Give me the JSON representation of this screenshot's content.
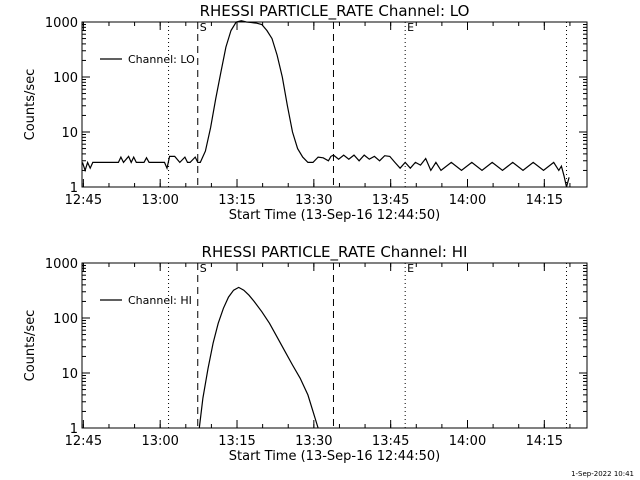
{
  "chart_data": [
    {
      "type": "line",
      "title": "RHESSI PARTICLE_RATE Channel: LO",
      "xlabel": "Start Time (13-Sep-16 12:44:50)",
      "ylabel": "Counts/sec",
      "yscale": "log",
      "ylim": [
        1,
        1000
      ],
      "y_tick_labels": [
        "1",
        "10",
        "100",
        "1000"
      ],
      "x_tick_labels": [
        "12:45",
        "13:00",
        "13:15",
        "13:30",
        "13:45",
        "14:00",
        "14:15"
      ],
      "xlim_min": [
        -0.1,
        98.5
      ],
      "legend": "Channel: LO",
      "legend_position": "top-left",
      "markers": [
        {
          "label": "S",
          "t_min": 22.5,
          "style": "dashed"
        },
        {
          "label": "",
          "t_min": 49.0,
          "style": "dashed"
        },
        {
          "label": "E",
          "t_min": 63.0,
          "style": "dotted"
        },
        {
          "label": "",
          "t_min": 16.8,
          "style": "dotted"
        },
        {
          "label": "",
          "t_min": 94.5,
          "style": "dotted"
        }
      ],
      "series": [
        {
          "name": "Channel: LO",
          "t_min": [
            0,
            0.5,
            1,
            1.5,
            2,
            3,
            5,
            7,
            7.5,
            8,
            9,
            9.5,
            10,
            10.5,
            11,
            12,
            12.5,
            13,
            14,
            15,
            16,
            16.5,
            17,
            18,
            19,
            20,
            20.5,
            21,
            22,
            22.5,
            23,
            24,
            25,
            26,
            27,
            28,
            29,
            30,
            31,
            32,
            33,
            34,
            35,
            36,
            37,
            38,
            39,
            40,
            41,
            42,
            43,
            44,
            45,
            46,
            47,
            48,
            48.5,
            49,
            50,
            51,
            52,
            53,
            54,
            55,
            56,
            57,
            58,
            59,
            60,
            61,
            62,
            63,
            64,
            65,
            66,
            67,
            68,
            69,
            70,
            72,
            74,
            76,
            78,
            80,
            82,
            84,
            86,
            88,
            90,
            92,
            93,
            93.5,
            94,
            94.5,
            95
          ],
          "values": [
            2.8,
            2.0,
            2.8,
            2.2,
            2.8,
            2.8,
            2.8,
            2.8,
            3.5,
            2.8,
            3.6,
            2.8,
            3.5,
            2.8,
            2.8,
            2.8,
            3.4,
            2.8,
            2.8,
            2.8,
            2.8,
            2.2,
            3.6,
            3.6,
            2.8,
            3.5,
            2.8,
            2.8,
            3.5,
            2.8,
            2.8,
            4.5,
            12,
            40,
            120,
            350,
            700,
            1000,
            1050,
            1000,
            980,
            950,
            900,
            700,
            500,
            250,
            100,
            30,
            10,
            5,
            3.5,
            2.8,
            2.8,
            3.5,
            3.4,
            3.0,
            3.6,
            3.8,
            3.2,
            3.8,
            3.2,
            3.8,
            3.0,
            3.8,
            3.2,
            3.6,
            3.0,
            3.7,
            3.6,
            2.8,
            2.2,
            2.8,
            2.2,
            2.8,
            2.5,
            3.3,
            2.0,
            2.8,
            2.0,
            2.8,
            2.0,
            2.8,
            2.0,
            2.8,
            2.0,
            2.8,
            2.0,
            2.8,
            2.0,
            2.8,
            2.0,
            2.4,
            1.6,
            1.0,
            1.5
          ]
        }
      ]
    },
    {
      "type": "line",
      "title": "RHESSI PARTICLE_RATE Channel: HI",
      "xlabel": "Start Time (13-Sep-16 12:44:50)",
      "ylabel": "Counts/sec",
      "yscale": "log",
      "ylim": [
        1,
        1000
      ],
      "y_tick_labels": [
        "1",
        "10",
        "100",
        "1000"
      ],
      "x_tick_labels": [
        "12:45",
        "13:00",
        "13:15",
        "13:30",
        "13:45",
        "14:00",
        "14:15"
      ],
      "xlim_min": [
        -0.1,
        98.5
      ],
      "legend": "Channel: HI",
      "legend_position": "top-left",
      "markers": [
        {
          "label": "S",
          "t_min": 22.5,
          "style": "dashed"
        },
        {
          "label": "",
          "t_min": 49.0,
          "style": "dashed"
        },
        {
          "label": "E",
          "t_min": 63.0,
          "style": "dotted"
        },
        {
          "label": "",
          "t_min": 16.8,
          "style": "dotted"
        },
        {
          "label": "",
          "t_min": 94.5,
          "style": "dotted"
        }
      ],
      "series": [
        {
          "name": "Channel: HI",
          "t_min": [
            22.8,
            23.5,
            24.5,
            25.5,
            26.5,
            27.5,
            28.5,
            29.5,
            30.5,
            31.5,
            32.5,
            33.5,
            35,
            36.5,
            38,
            39.5,
            41,
            42.5,
            44,
            45,
            46
          ],
          "values": [
            1.0,
            3.5,
            12,
            35,
            80,
            150,
            240,
            320,
            360,
            320,
            260,
            200,
            130,
            80,
            45,
            25,
            14,
            8,
            4,
            2,
            1.0
          ]
        }
      ]
    }
  ],
  "footer": "1-Sep-2022 10:41"
}
